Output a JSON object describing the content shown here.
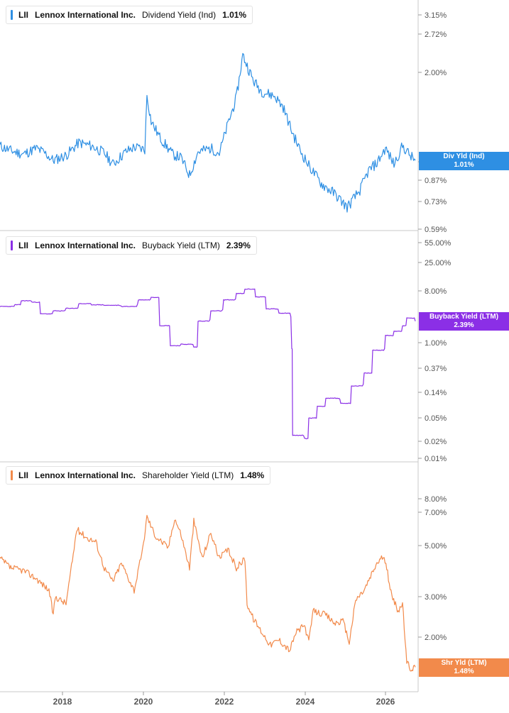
{
  "colors": {
    "div": "#2e8fe3",
    "buyback": "#8b2fe6",
    "shr": "#f28a4b",
    "axis": "#555555",
    "grid": "#d9d9d9"
  },
  "x_axis": {
    "ticks": [
      "2018",
      "2020",
      "2022",
      "2024",
      "2026"
    ]
  },
  "panels": [
    {
      "id": "div",
      "legend": {
        "ticker": "LII",
        "company": "Lennox International Inc.",
        "metric": "Dividend Yield (Ind)",
        "value": "1.01%"
      },
      "tag": {
        "line1": "Div Yld (Ind)",
        "line2": "1.01%"
      },
      "y_ticks": [
        "3.15%",
        "2.72%",
        "2.00%",
        "1.00%",
        "0.87%",
        "0.73%",
        "0.59%"
      ]
    },
    {
      "id": "buyback",
      "legend": {
        "ticker": "LII",
        "company": "Lennox International Inc.",
        "metric": "Buyback Yield (LTM)",
        "value": "2.39%"
      },
      "tag": {
        "line1": "Buyback Yield (LTM)",
        "line2": "2.39%"
      },
      "y_ticks": [
        "55.00%",
        "25.00%",
        "8.00%",
        "1.00%",
        "0.37%",
        "0.14%",
        "0.05%",
        "0.02%",
        "0.01%"
      ]
    },
    {
      "id": "shr",
      "legend": {
        "ticker": "LII",
        "company": "Lennox International Inc.",
        "metric": "Shareholder Yield (LTM)",
        "value": "1.48%"
      },
      "tag": {
        "line1": "Shr Yld (LTM)",
        "line2": "1.48%"
      },
      "y_ticks": [
        "8.00%",
        "7.00%",
        "5.00%",
        "3.00%",
        "2.00%"
      ]
    }
  ],
  "chart_data": [
    {
      "type": "line",
      "title": "LII Lennox International Inc. Dividend Yield (Ind) 1.01%",
      "y_scale": "log",
      "ylim": [
        0.59,
        3.4
      ],
      "xlim": [
        2016.75,
        2026.55
      ],
      "series": [
        {
          "name": "Dividend Yield (Ind)",
          "x": [
            2016.75,
            2017.0,
            2017.3,
            2017.6,
            2017.8,
            2018.0,
            2018.3,
            2018.6,
            2018.9,
            2019.2,
            2019.4,
            2019.7,
            2019.9,
            2020.15,
            2020.2,
            2020.3,
            2020.5,
            2020.8,
            2021.0,
            2021.2,
            2021.4,
            2021.7,
            2021.9,
            2022.1,
            2022.3,
            2022.45,
            2022.7,
            2022.9,
            2023.2,
            2023.4,
            2023.6,
            2023.8,
            2024.0,
            2024.3,
            2024.6,
            2024.9,
            2025.0,
            2025.2,
            2025.4,
            2025.6,
            2025.8,
            2026.0,
            2026.2,
            2026.4,
            2026.5
          ],
          "y": [
            1.13,
            1.09,
            1.06,
            1.11,
            1.07,
            1.01,
            1.05,
            1.16,
            1.13,
            1.07,
            0.98,
            1.08,
            1.12,
            1.1,
            1.68,
            1.37,
            1.21,
            1.06,
            1.03,
            0.9,
            1.08,
            1.11,
            1.07,
            1.34,
            1.65,
            2.3,
            1.88,
            1.73,
            1.67,
            1.53,
            1.27,
            1.09,
            0.97,
            0.84,
            0.78,
            0.7,
            0.73,
            0.8,
            0.93,
            0.99,
            1.11,
            0.98,
            1.13,
            1.04,
            1.01
          ]
        }
      ]
    },
    {
      "type": "line",
      "title": "LII Lennox International Inc. Buyback Yield (LTM) 2.39%",
      "y_scale": "log",
      "ylim": [
        0.01,
        55.0
      ],
      "xlim": [
        2016.75,
        2026.55
      ],
      "series": [
        {
          "name": "Buyback Yield (LTM)",
          "x": [
            2016.75,
            2017.1,
            2017.25,
            2017.5,
            2017.7,
            2018.0,
            2018.3,
            2018.6,
            2018.9,
            2019.2,
            2019.6,
            2020.0,
            2020.3,
            2020.5,
            2020.75,
            2021.0,
            2021.3,
            2021.4,
            2021.7,
            2022.0,
            2022.3,
            2022.5,
            2022.75,
            2023.0,
            2023.3,
            2023.6,
            2023.62,
            2023.9,
            2024.0,
            2024.2,
            2024.4,
            2024.75,
            2025.0,
            2025.3,
            2025.5,
            2025.8,
            2026.0,
            2026.2,
            2026.3,
            2026.5
          ],
          "y": [
            4.3,
            4.6,
            5.4,
            5.1,
            3.2,
            3.6,
            4.0,
            4.8,
            4.6,
            4.5,
            4.3,
            5.6,
            6.2,
            2.0,
            0.9,
            0.95,
            0.85,
            2.4,
            3.6,
            5.6,
            7.2,
            8.6,
            6.3,
            3.9,
            3.3,
            0.8,
            0.025,
            0.022,
            0.05,
            0.08,
            0.11,
            0.09,
            0.18,
            0.3,
            0.75,
            1.35,
            1.6,
            2.0,
            2.7,
            2.39
          ]
        }
      ]
    },
    {
      "type": "line",
      "title": "LII Lennox International Inc. Shareholder Yield (LTM) 1.48%",
      "y_scale": "log",
      "ylim": [
        1.4,
        9.2
      ],
      "xlim": [
        2016.75,
        2026.55
      ],
      "series": [
        {
          "name": "Shareholder Yield (LTM)",
          "x": [
            2016.75,
            2017.0,
            2017.3,
            2017.6,
            2017.9,
            2018.0,
            2018.05,
            2018.3,
            2018.45,
            2018.55,
            2018.8,
            2019.0,
            2019.2,
            2019.4,
            2019.6,
            2019.9,
            2020.1,
            2020.2,
            2020.4,
            2020.5,
            2020.7,
            2020.85,
            2021.0,
            2021.2,
            2021.3,
            2021.5,
            2021.7,
            2021.9,
            2022.1,
            2022.3,
            2022.5,
            2022.55,
            2022.7,
            2022.9,
            2023.1,
            2023.3,
            2023.55,
            2023.7,
            2023.9,
            2024.0,
            2024.1,
            2024.4,
            2024.6,
            2024.8,
            2024.95,
            2025.1,
            2025.3,
            2025.6,
            2025.75,
            2025.85,
            2025.95,
            2026.1,
            2026.2,
            2026.3,
            2026.4,
            2026.5
          ],
          "y": [
            4.4,
            4.0,
            3.9,
            3.6,
            3.2,
            2.5,
            3.0,
            2.8,
            4.3,
            5.9,
            5.4,
            5.2,
            4.0,
            3.5,
            4.2,
            3.2,
            4.8,
            6.7,
            5.5,
            5.3,
            4.9,
            6.6,
            5.6,
            4.0,
            6.4,
            4.4,
            5.7,
            4.4,
            4.8,
            4.0,
            4.4,
            2.8,
            2.4,
            2.1,
            1.85,
            1.95,
            1.75,
            2.1,
            2.25,
            1.9,
            2.6,
            2.5,
            2.3,
            2.35,
            1.9,
            2.9,
            3.2,
            4.2,
            4.5,
            3.8,
            3.0,
            2.6,
            2.8,
            1.55,
            1.45,
            1.48
          ]
        }
      ]
    }
  ]
}
